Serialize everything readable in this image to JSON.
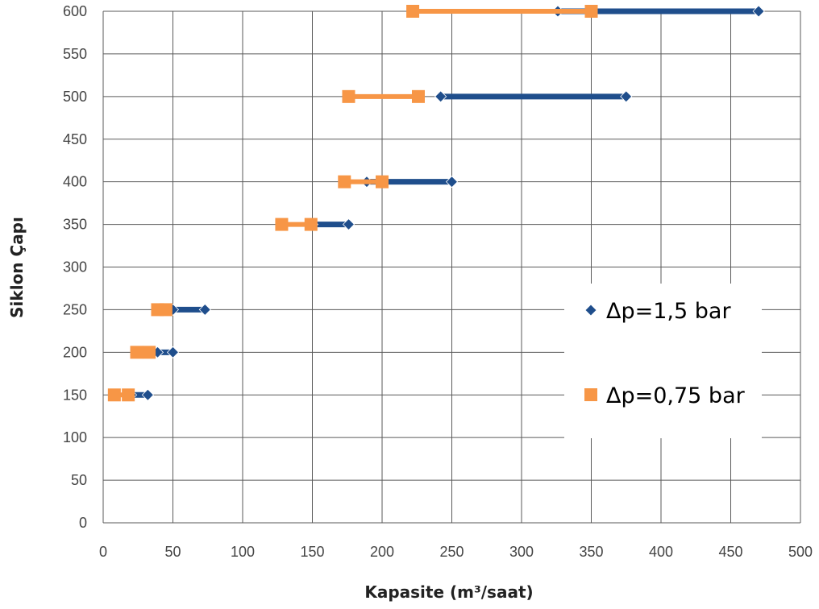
{
  "chart_data": {
    "type": "line",
    "xlabel": "Kapasite (m³/saat)",
    "ylabel": "Siklon Çapı",
    "xlim": [
      0,
      500
    ],
    "ylim": [
      0,
      600
    ],
    "x_ticks": [
      "0",
      "50",
      "100",
      "150",
      "200",
      "250",
      "300",
      "350",
      "400",
      "450",
      "500"
    ],
    "y_ticks": [
      "0",
      "50",
      "100",
      "150",
      "200",
      "250",
      "300",
      "350",
      "400",
      "450",
      "500",
      "550",
      "600"
    ],
    "grid": true,
    "legend_position": "right",
    "series": [
      {
        "name": "Δp=1,5 bar",
        "color": "#1F4E8C",
        "marker": "diamond",
        "segments": [
          {
            "y": 150,
            "x": [
              20,
              32
            ]
          },
          {
            "y": 200,
            "x": [
              39,
              50
            ]
          },
          {
            "y": 250,
            "x": [
              50,
              73
            ]
          },
          {
            "y": 350,
            "x": [
              150,
              176
            ]
          },
          {
            "y": 400,
            "x": [
              189,
              250
            ]
          },
          {
            "y": 500,
            "x": [
              242,
              375
            ]
          },
          {
            "y": 600,
            "x": [
              326,
              470
            ]
          }
        ]
      },
      {
        "name": "Δp=0,75 bar",
        "color": "#F79646",
        "marker": "square",
        "segments": [
          {
            "y": 150,
            "x": [
              8,
              18
            ]
          },
          {
            "y": 200,
            "x": [
              24,
              33
            ]
          },
          {
            "y": 250,
            "x": [
              39,
              45
            ]
          },
          {
            "y": 350,
            "x": [
              128,
              149
            ]
          },
          {
            "y": 400,
            "x": [
              173,
              200
            ]
          },
          {
            "y": 500,
            "x": [
              176,
              226
            ]
          },
          {
            "y": 600,
            "x": [
              222,
              350
            ]
          }
        ]
      }
    ]
  }
}
